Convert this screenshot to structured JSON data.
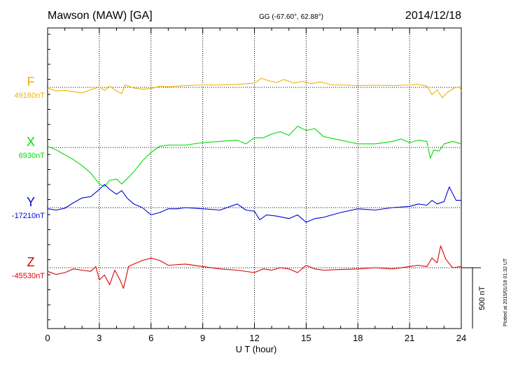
{
  "header": {
    "station": "Mawson (MAW)  [GA]",
    "coords": "GG (-67.60°,  62.88°)",
    "date": "2014/12/18"
  },
  "footer": {
    "plotted_note": "Plotted at 2015/01/18 01:32 UT"
  },
  "chart_data": {
    "type": "line",
    "title": "Mawson (MAW)  [GA]",
    "xlabel": "U T (hour)",
    "xlim": [
      0,
      24
    ],
    "x_ticks": [
      0,
      3,
      6,
      9,
      12,
      15,
      18,
      21,
      24
    ],
    "grid": true,
    "scale_bar": {
      "label": "500 nT",
      "value_nT": 500
    },
    "series": [
      {
        "name": "F",
        "baseline_label": "49160nT",
        "baseline_nT": 49160,
        "color": "#f0b400",
        "values": [
          [
            0,
            -5
          ],
          [
            0.5,
            -30
          ],
          [
            1,
            -25
          ],
          [
            1.5,
            -35
          ],
          [
            2,
            -45
          ],
          [
            2.5,
            -20
          ],
          [
            3,
            5
          ],
          [
            3.3,
            -25
          ],
          [
            3.6,
            10
          ],
          [
            4,
            -30
          ],
          [
            4.3,
            -50
          ],
          [
            4.5,
            20
          ],
          [
            5,
            -5
          ],
          [
            5.5,
            -15
          ],
          [
            6,
            -10
          ],
          [
            6.5,
            10
          ],
          [
            7,
            5
          ],
          [
            8,
            15
          ],
          [
            9,
            20
          ],
          [
            10,
            20
          ],
          [
            11,
            25
          ],
          [
            11.5,
            30
          ],
          [
            12,
            35
          ],
          [
            12.4,
            75
          ],
          [
            12.8,
            55
          ],
          [
            13.3,
            40
          ],
          [
            13.7,
            65
          ],
          [
            14.3,
            35
          ],
          [
            14.8,
            50
          ],
          [
            15.3,
            30
          ],
          [
            15.8,
            45
          ],
          [
            16.5,
            20
          ],
          [
            17,
            20
          ],
          [
            18,
            15
          ],
          [
            19,
            18
          ],
          [
            20,
            15
          ],
          [
            21,
            20
          ],
          [
            21.5,
            25
          ],
          [
            22,
            10
          ],
          [
            22.3,
            -60
          ],
          [
            22.6,
            -20
          ],
          [
            22.9,
            -85
          ],
          [
            23.2,
            -40
          ],
          [
            23.6,
            -5
          ],
          [
            23.9,
            5
          ],
          [
            24,
            -30
          ]
        ]
      },
      {
        "name": "X",
        "baseline_label": "6930nT",
        "baseline_nT": 6930,
        "color": "#00dd00",
        "values": [
          [
            0,
            10
          ],
          [
            0.5,
            -20
          ],
          [
            1,
            -60
          ],
          [
            1.5,
            -100
          ],
          [
            2,
            -150
          ],
          [
            2.5,
            -210
          ],
          [
            3,
            -300
          ],
          [
            3.3,
            -320
          ],
          [
            3.6,
            -270
          ],
          [
            4,
            -260
          ],
          [
            4.3,
            -300
          ],
          [
            4.6,
            -260
          ],
          [
            5,
            -200
          ],
          [
            5.5,
            -110
          ],
          [
            6,
            -40
          ],
          [
            6.5,
            10
          ],
          [
            7,
            20
          ],
          [
            8,
            20
          ],
          [
            9,
            40
          ],
          [
            10,
            50
          ],
          [
            11,
            60
          ],
          [
            11.5,
            30
          ],
          [
            12,
            80
          ],
          [
            12.5,
            80
          ],
          [
            13,
            110
          ],
          [
            13.5,
            130
          ],
          [
            14,
            100
          ],
          [
            14.5,
            175
          ],
          [
            15,
            140
          ],
          [
            15.5,
            155
          ],
          [
            16,
            90
          ],
          [
            17,
            60
          ],
          [
            18,
            30
          ],
          [
            19,
            30
          ],
          [
            20,
            50
          ],
          [
            20.5,
            70
          ],
          [
            21,
            40
          ],
          [
            21.5,
            60
          ],
          [
            22,
            50
          ],
          [
            22.2,
            -90
          ],
          [
            22.4,
            -20
          ],
          [
            22.7,
            -30
          ],
          [
            23,
            30
          ],
          [
            23.5,
            50
          ],
          [
            24,
            30
          ]
        ]
      },
      {
        "name": "Y",
        "baseline_label": "-17210nT",
        "baseline_nT": -17210,
        "color": "#0000dd",
        "values": [
          [
            0,
            -10
          ],
          [
            0.5,
            -20
          ],
          [
            1,
            -5
          ],
          [
            1.5,
            40
          ],
          [
            2,
            80
          ],
          [
            2.5,
            90
          ],
          [
            3,
            150
          ],
          [
            3.3,
            190
          ],
          [
            3.6,
            150
          ],
          [
            4,
            110
          ],
          [
            4.3,
            140
          ],
          [
            4.6,
            80
          ],
          [
            5,
            30
          ],
          [
            5.5,
            0
          ],
          [
            6,
            -60
          ],
          [
            6.5,
            -40
          ],
          [
            7,
            -10
          ],
          [
            7.5,
            -10
          ],
          [
            8,
            0
          ],
          [
            9,
            -10
          ],
          [
            10,
            -20
          ],
          [
            11,
            30
          ],
          [
            11.5,
            -20
          ],
          [
            12,
            -30
          ],
          [
            12.3,
            -100
          ],
          [
            12.7,
            -60
          ],
          [
            13.3,
            -70
          ],
          [
            14,
            -90
          ],
          [
            14.5,
            -60
          ],
          [
            15,
            -120
          ],
          [
            15.5,
            -90
          ],
          [
            16,
            -80
          ],
          [
            17,
            -40
          ],
          [
            18,
            -10
          ],
          [
            19,
            -20
          ],
          [
            20,
            0
          ],
          [
            21,
            10
          ],
          [
            21.5,
            30
          ],
          [
            22,
            20
          ],
          [
            22.3,
            60
          ],
          [
            22.6,
            30
          ],
          [
            23,
            50
          ],
          [
            23.3,
            170
          ],
          [
            23.7,
            60
          ],
          [
            24,
            60
          ]
        ]
      },
      {
        "name": "Z",
        "baseline_label": "-45530nT",
        "baseline_nT": -45530,
        "color": "#dd0000",
        "values": [
          [
            0,
            -30
          ],
          [
            0.5,
            -55
          ],
          [
            1,
            -40
          ],
          [
            1.5,
            -10
          ],
          [
            2,
            -20
          ],
          [
            2.5,
            -30
          ],
          [
            2.8,
            10
          ],
          [
            3,
            -100
          ],
          [
            3.3,
            -60
          ],
          [
            3.6,
            -140
          ],
          [
            3.9,
            -20
          ],
          [
            4.2,
            -100
          ],
          [
            4.4,
            -170
          ],
          [
            4.7,
            10
          ],
          [
            5,
            30
          ],
          [
            5.5,
            60
          ],
          [
            6,
            80
          ],
          [
            6.5,
            60
          ],
          [
            7,
            20
          ],
          [
            8,
            30
          ],
          [
            9,
            10
          ],
          [
            10,
            -10
          ],
          [
            11,
            -20
          ],
          [
            12,
            -40
          ],
          [
            12.5,
            -10
          ],
          [
            13,
            -20
          ],
          [
            13.5,
            0
          ],
          [
            14,
            -10
          ],
          [
            14.5,
            -40
          ],
          [
            15,
            20
          ],
          [
            15.5,
            -10
          ],
          [
            16,
            -20
          ],
          [
            17,
            -15
          ],
          [
            18,
            -10
          ],
          [
            19,
            0
          ],
          [
            20,
            -10
          ],
          [
            21,
            10
          ],
          [
            21.5,
            20
          ],
          [
            22,
            10
          ],
          [
            22.3,
            80
          ],
          [
            22.6,
            40
          ],
          [
            22.8,
            180
          ],
          [
            23.1,
            70
          ],
          [
            23.5,
            0
          ],
          [
            24,
            10
          ]
        ]
      }
    ]
  }
}
